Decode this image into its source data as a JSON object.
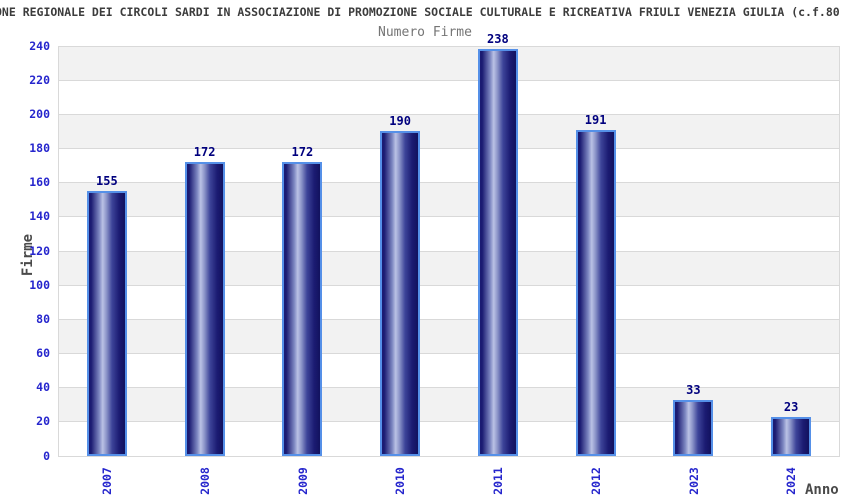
{
  "header": {
    "title": "ONE REGIONALE DEI CIRCOLI SARDI IN ASSOCIAZIONE DI PROMOZIONE SOCIALE CULTURALE E RICREATIVA FRIULI VENEZIA GIULIA (c.f.80",
    "subtitle": "Numero Firme"
  },
  "chart_data": {
    "type": "bar",
    "title": "Numero Firme",
    "categories": [
      "2007",
      "2008",
      "2009",
      "2010",
      "2011",
      "2012",
      "2023",
      "2024"
    ],
    "values": [
      155,
      172,
      172,
      190,
      238,
      191,
      33,
      23
    ],
    "xlabel": "Anno",
    "ylabel": "Firme",
    "ylim": [
      0,
      240
    ],
    "ytick_step": 20,
    "grid": true,
    "legend": false,
    "band_fill": "alternating horizontal bands, gray on top band"
  },
  "colors": {
    "tick_label": "#2626cd",
    "value_label": "#00007e",
    "bar_dark": "#1b1b72",
    "bar_light": "#bac2e5",
    "bar_border": "#5590e8",
    "band_gray": "#f2f2f2",
    "band_white": "#ffffff",
    "grid_line": "#d9d9d9",
    "title_text": "#3c3c3c",
    "subtitle_text": "#757575",
    "axis_label_text": "#4a4a4a"
  }
}
